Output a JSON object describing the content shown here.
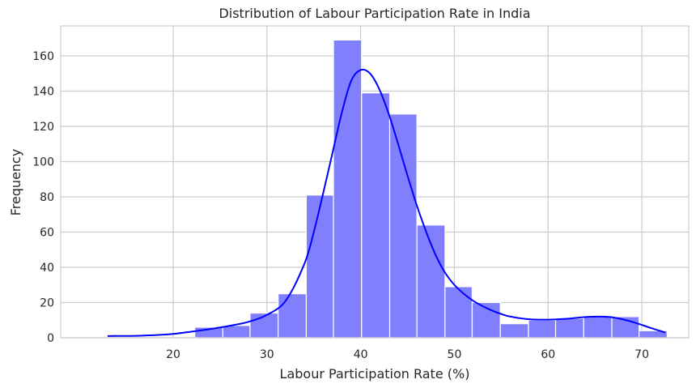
{
  "chart_data": {
    "type": "bar",
    "title": "Distribution of Labour Participation Rate in India",
    "xlabel": "Labour Participation Rate (%)",
    "ylabel": "Frequency",
    "xlim": [
      8,
      75
    ],
    "ylim": [
      0,
      177
    ],
    "xticks": [
      20,
      30,
      40,
      50,
      60,
      70
    ],
    "yticks": [
      0,
      20,
      40,
      60,
      80,
      100,
      120,
      140,
      160
    ],
    "grid": true,
    "bar_color": "#8080ff",
    "bar_edge_color": "#ffffff",
    "kde_color": "#0000ff",
    "bins": [
      {
        "x0": 22.3,
        "x1": 25.3,
        "count": 6
      },
      {
        "x0": 25.3,
        "x1": 28.2,
        "count": 7
      },
      {
        "x0": 28.2,
        "x1": 31.2,
        "count": 14
      },
      {
        "x0": 31.2,
        "x1": 34.2,
        "count": 25
      },
      {
        "x0": 34.2,
        "x1": 37.1,
        "count": 81
      },
      {
        "x0": 37.1,
        "x1": 40.1,
        "count": 169
      },
      {
        "x0": 40.1,
        "x1": 43.1,
        "count": 139
      },
      {
        "x0": 43.1,
        "x1": 46.0,
        "count": 127
      },
      {
        "x0": 46.0,
        "x1": 49.0,
        "count": 64
      },
      {
        "x0": 49.0,
        "x1": 51.9,
        "count": 29
      },
      {
        "x0": 51.9,
        "x1": 54.9,
        "count": 20
      },
      {
        "x0": 54.9,
        "x1": 57.9,
        "count": 8
      },
      {
        "x0": 57.9,
        "x1": 60.8,
        "count": 10
      },
      {
        "x0": 60.8,
        "x1": 63.8,
        "count": 11
      },
      {
        "x0": 63.8,
        "x1": 66.8,
        "count": 12
      },
      {
        "x0": 66.8,
        "x1": 69.7,
        "count": 12
      },
      {
        "x0": 69.7,
        "x1": 72.7,
        "count": 4
      }
    ],
    "kde": [
      [
        13,
        1
      ],
      [
        16,
        1.1
      ],
      [
        18,
        1.5
      ],
      [
        20,
        2.2
      ],
      [
        22,
        3.5
      ],
      [
        24,
        5
      ],
      [
        26,
        6.8
      ],
      [
        28,
        9
      ],
      [
        30,
        13
      ],
      [
        32,
        21
      ],
      [
        34,
        42
      ],
      [
        35,
        60
      ],
      [
        36,
        82
      ],
      [
        37,
        105
      ],
      [
        38,
        128
      ],
      [
        39,
        146
      ],
      [
        40,
        152
      ],
      [
        41,
        150
      ],
      [
        42,
        141
      ],
      [
        43,
        127
      ],
      [
        44,
        110
      ],
      [
        45,
        92
      ],
      [
        46,
        75
      ],
      [
        47,
        60
      ],
      [
        48,
        47
      ],
      [
        49,
        37
      ],
      [
        50,
        30
      ],
      [
        51,
        25
      ],
      [
        52,
        21
      ],
      [
        53,
        18
      ],
      [
        54,
        15.5
      ],
      [
        55,
        13.5
      ],
      [
        56,
        12
      ],
      [
        58,
        10.5
      ],
      [
        60,
        10.3
      ],
      [
        62,
        10.8
      ],
      [
        64,
        11.8
      ],
      [
        65.5,
        12
      ],
      [
        67,
        11.5
      ],
      [
        69,
        9
      ],
      [
        71,
        5.5
      ],
      [
        72.5,
        3
      ]
    ]
  }
}
